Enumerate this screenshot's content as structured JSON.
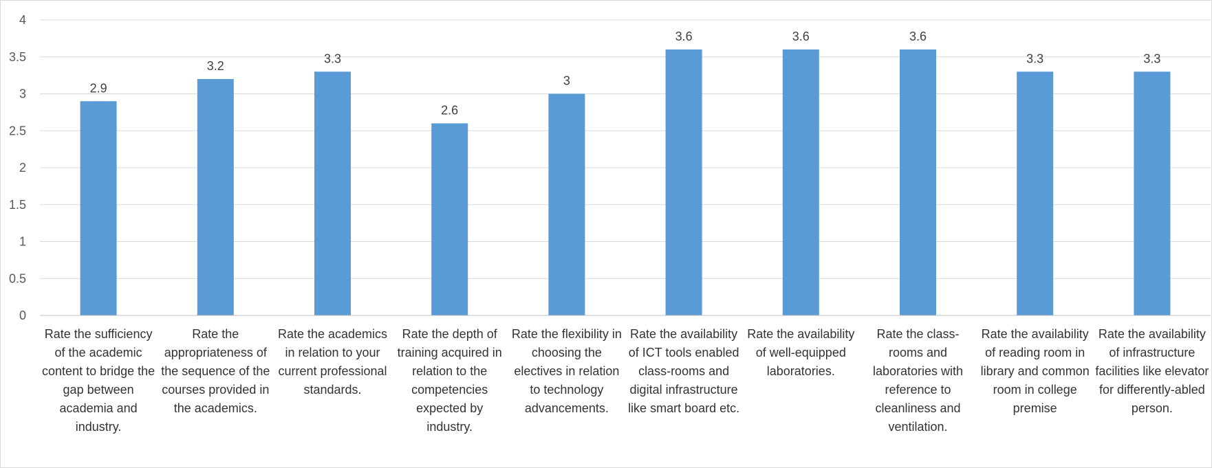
{
  "chart_data": {
    "type": "bar",
    "title": "",
    "xlabel": "",
    "ylabel": "",
    "ylim": [
      0,
      4
    ],
    "y_ticks": [
      "0",
      "0.5",
      "1",
      "1.5",
      "2",
      "2.5",
      "3",
      "3.5",
      "4"
    ],
    "grid": true,
    "bar_color": "#5B9BD5",
    "categories": [
      "Rate the sufficiency of the academic content to bridge the gap between academia and industry.",
      "Rate the appropriateness of the sequence of the courses provided in the academics.",
      "Rate the academics in relation to your current professional standards.",
      "Rate the depth of training acquired in relation to the competencies expected by industry.",
      "Rate the flexibility in choosing the electives in relation to technology advancements.",
      "Rate the availability of ICT tools enabled class-rooms and digital infrastructure like smart board etc.",
      "Rate the availability of well-equipped laboratories.",
      "Rate the class-rooms and laboratories with reference to cleanliness and ventilation.",
      "Rate the availability of reading room in library and common room in college premise",
      "Rate the availability of infrastructure facilities like elevator for differently-abled person."
    ],
    "values": [
      2.9,
      3.2,
      3.3,
      2.6,
      3,
      3.6,
      3.6,
      3.6,
      3.3,
      3.3
    ],
    "data_labels": [
      "2.9",
      "3.2",
      "3.3",
      "2.6",
      "3",
      "3.6",
      "3.6",
      "3.6",
      "3.3",
      "3.3"
    ]
  }
}
